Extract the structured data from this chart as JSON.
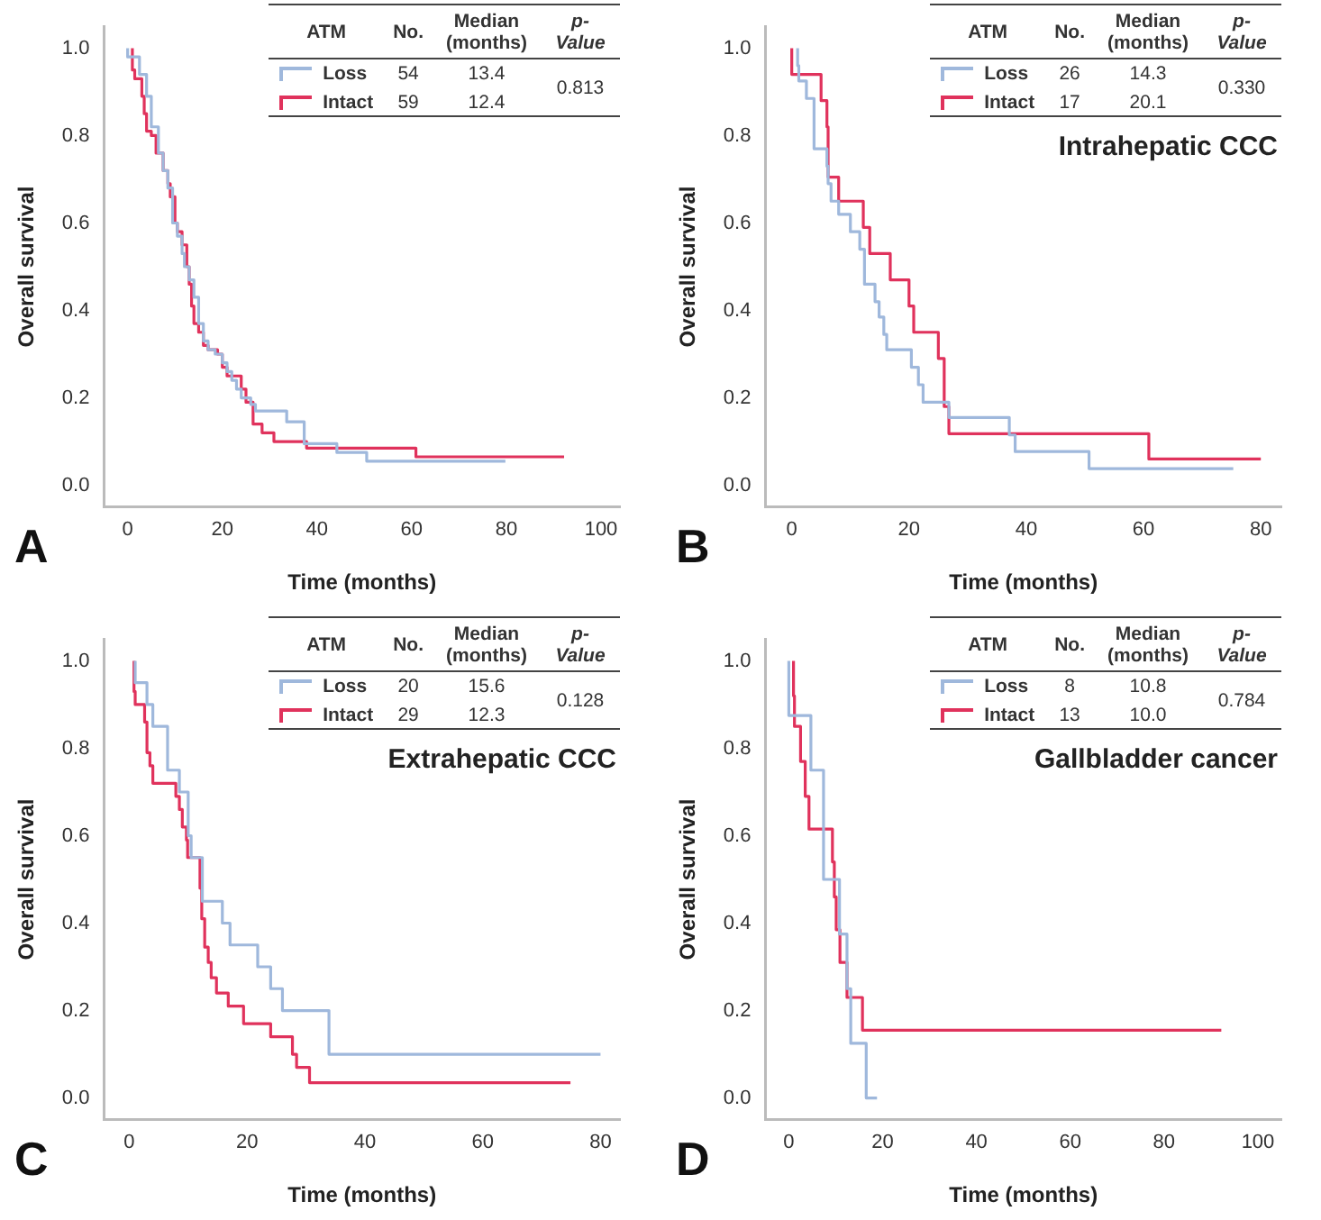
{
  "chart_data": [
    {
      "type": "step",
      "title": "A",
      "xlabel": "Time (months)",
      "ylabel": "Overall survival",
      "legend": "top",
      "legend_title": "ATM",
      "annotations": [
        "No.",
        "Median (months)",
        "p-Value",
        "54",
        "13.4",
        "59",
        "12.4",
        "0.813"
      ],
      "xlim": [
        -5,
        104
      ],
      "xticks": [
        0,
        20,
        40,
        60,
        80,
        100
      ],
      "ylim": [
        -0.05,
        1.05
      ],
      "yticks": [
        {
          "value": 0,
          "label": "0.0"
        },
        {
          "value": 0.2,
          "label": "0.2"
        },
        {
          "value": 0.4,
          "label": "0.4"
        },
        {
          "value": 0.6,
          "label": "0.6"
        },
        {
          "value": 0.8,
          "label": "0.8"
        },
        {
          "value": 1,
          "label": "1.0"
        }
      ],
      "series": [
        {
          "name": "Loss",
          "color": "#9fb8dc",
          "x": [
            0,
            2.5,
            4,
            5,
            6.5,
            7.5,
            8.5,
            9.5,
            10.5,
            11.5,
            12,
            13,
            14,
            15,
            16,
            17,
            18.5,
            20,
            21,
            22,
            23,
            24,
            26,
            27,
            33.6,
            37.3,
            44.2,
            50.5,
            61,
            79.8
          ],
          "values": [
            1,
            0.98,
            0.94,
            0.89,
            0.82,
            0.76,
            0.72,
            0.68,
            0.6,
            0.57,
            0.53,
            0.5,
            0.47,
            0.43,
            0.37,
            0.33,
            0.31,
            0.3,
            0.28,
            0.26,
            0.24,
            0.22,
            0.2,
            0.185,
            0.17,
            0.145,
            0.095,
            0.075,
            0.055,
            0.055
          ]
        },
        {
          "name": "Intact",
          "color": "#e0325c",
          "x": [
            1,
            1.5,
            3,
            3.5,
            4,
            5,
            6,
            7.5,
            8.5,
            9,
            10,
            10.5,
            11.5,
            12.5,
            13,
            13.5,
            14,
            15,
            16,
            17,
            19,
            20,
            21,
            24,
            25,
            26.5,
            28.4,
            30.9,
            37.8,
            60.9,
            72.7,
            92.2
          ],
          "values": [
            1,
            0.95,
            0.93,
            0.89,
            0.85,
            0.81,
            0.8,
            0.76,
            0.72,
            0.69,
            0.66,
            0.6,
            0.58,
            0.55,
            0.5,
            0.46,
            0.41,
            0.37,
            0.35,
            0.32,
            0.31,
            0.3,
            0.27,
            0.25,
            0.22,
            0.19,
            0.14,
            0.12,
            0.1,
            0.085,
            0.065,
            0.065
          ]
        }
      ]
    },
    {
      "type": "step",
      "title": "B",
      "subtitle": "Intrahepatic CCC",
      "xlabel": "Time (months)",
      "ylabel": "Overall survival",
      "legend": "top",
      "legend_title": "ATM",
      "annotations": [
        "No.",
        "Median (months)",
        "p-Value",
        "26",
        "14.3",
        "17",
        "20.1",
        "0.330"
      ],
      "xlim": [
        -4.5,
        83.5
      ],
      "xticks": [
        0,
        20,
        40,
        60,
        80
      ],
      "ylim": [
        -0.05,
        1.05
      ],
      "yticks": [
        {
          "value": 0,
          "label": "0.0"
        },
        {
          "value": 0.2,
          "label": "0.2"
        },
        {
          "value": 0.4,
          "label": "0.4"
        },
        {
          "value": 0.6,
          "label": "0.6"
        },
        {
          "value": 0.8,
          "label": "0.8"
        },
        {
          "value": 1,
          "label": "1.0"
        }
      ],
      "series": [
        {
          "name": "Loss",
          "color": "#9fb8dc",
          "x": [
            1,
            1.2,
            2.5,
            3.8,
            6,
            6.2,
            6.7,
            8,
            10,
            11.6,
            12.4,
            14.2,
            14.9,
            15.7,
            16.2,
            20.4,
            21.6,
            22.4,
            26.8,
            37.1,
            38.1,
            50.7,
            60.9,
            75.3
          ],
          "values": [
            1,
            0.96,
            0.925,
            0.885,
            0.77,
            0.73,
            0.69,
            0.65,
            0.62,
            0.58,
            0.54,
            0.46,
            0.42,
            0.385,
            0.345,
            0.31,
            0.27,
            0.23,
            0.19,
            0.155,
            0.115,
            0.077,
            0.038,
            0.038
          ]
        },
        {
          "name": "Intact",
          "color": "#e0325c",
          "x": [
            0,
            5,
            6,
            6.2,
            8,
            12.2,
            13.3,
            16.8,
            20,
            20.8,
            25,
            26,
            26.8,
            60.9,
            72.6,
            80
          ],
          "values": [
            1,
            0.94,
            0.88,
            0.82,
            0.705,
            0.65,
            0.59,
            0.53,
            0.47,
            0.41,
            0.35,
            0.29,
            0.18,
            0.118,
            0.06,
            0.06
          ]
        }
      ]
    },
    {
      "type": "step",
      "title": "C",
      "subtitle": "Extrahepatic CCC",
      "xlabel": "Time (months)",
      "ylabel": "Overall survival",
      "legend": "top",
      "legend_title": "ATM",
      "annotations": [
        "No.",
        "Median (months)",
        "p-Value",
        "20",
        "15.6",
        "29",
        "12.3",
        "0.128"
      ],
      "xlim": [
        -4.3,
        83.3
      ],
      "xticks": [
        0,
        20,
        40,
        60,
        80
      ],
      "ylim": [
        -0.05,
        1.05
      ],
      "yticks": [
        {
          "value": 0,
          "label": "0.0"
        },
        {
          "value": 0.2,
          "label": "0.2"
        },
        {
          "value": 0.4,
          "label": "0.4"
        },
        {
          "value": 0.6,
          "label": "0.6"
        },
        {
          "value": 0.8,
          "label": "0.8"
        },
        {
          "value": 1,
          "label": "1.0"
        }
      ],
      "series": [
        {
          "name": "Loss",
          "color": "#9fb8dc",
          "x": [
            1,
            3,
            4,
            6.5,
            8.5,
            10,
            10.5,
            12.4,
            15.8,
            17.1,
            21.8,
            24,
            26,
            33.9,
            44.2,
            80
          ],
          "values": [
            1,
            0.95,
            0.9,
            0.85,
            0.75,
            0.7,
            0.6,
            0.55,
            0.45,
            0.4,
            0.35,
            0.3,
            0.25,
            0.2,
            0.1,
            0.1
          ]
        },
        {
          "name": "Intact",
          "color": "#e0325c",
          "x": [
            0.8,
            1,
            2.6,
            3,
            3.5,
            4,
            7.9,
            8.5,
            9,
            9.7,
            9.9,
            12,
            12.3,
            12.8,
            13.4,
            13.9,
            14.8,
            16.8,
            19.4,
            24,
            27.7,
            28.4,
            30.6,
            37.6,
            74.9
          ],
          "values": [
            1,
            0.93,
            0.9,
            0.86,
            0.79,
            0.76,
            0.72,
            0.69,
            0.66,
            0.62,
            0.59,
            0.55,
            0.48,
            0.41,
            0.345,
            0.31,
            0.275,
            0.24,
            0.21,
            0.17,
            0.14,
            0.1,
            0.07,
            0.035,
            0.035
          ]
        }
      ]
    },
    {
      "type": "step",
      "title": "D",
      "subtitle": "Gallbladder cancer",
      "xlabel": "Time (months)",
      "ylabel": "Overall survival",
      "legend": "top",
      "legend_title": "ATM",
      "annotations": [
        "No.",
        "Median (months)",
        "p-Value",
        "8",
        "10.8",
        "13",
        "10.0",
        "0.784"
      ],
      "xlim": [
        -5,
        105
      ],
      "xticks": [
        0,
        20,
        40,
        60,
        80,
        100
      ],
      "ylim": [
        -0.05,
        1.05
      ],
      "yticks": [
        {
          "value": 0,
          "label": "0.0"
        },
        {
          "value": 0.2,
          "label": "0.2"
        },
        {
          "value": 0.4,
          "label": "0.4"
        },
        {
          "value": 0.6,
          "label": "0.6"
        },
        {
          "value": 0.8,
          "label": "0.8"
        },
        {
          "value": 1,
          "label": "1.0"
        }
      ],
      "series": [
        {
          "name": "Loss",
          "color": "#9fb8dc",
          "x": [
            0,
            4.7,
            7.4,
            10.8,
            12.4,
            13.2,
            16.5,
            18.8
          ],
          "values": [
            1,
            0.875,
            0.75,
            0.5,
            0.375,
            0.25,
            0.125,
            0
          ]
        },
        {
          "name": "Intact",
          "color": "#e0325c",
          "x": [
            1,
            1.2,
            2.5,
            3.5,
            4.3,
            9.3,
            9.7,
            10.1,
            10.9,
            12.4,
            15.7,
            28.2,
            92.2
          ],
          "values": [
            1,
            0.92,
            0.85,
            0.77,
            0.69,
            0.615,
            0.54,
            0.46,
            0.385,
            0.31,
            0.23,
            0.155,
            0.155
          ]
        }
      ]
    }
  ]
}
